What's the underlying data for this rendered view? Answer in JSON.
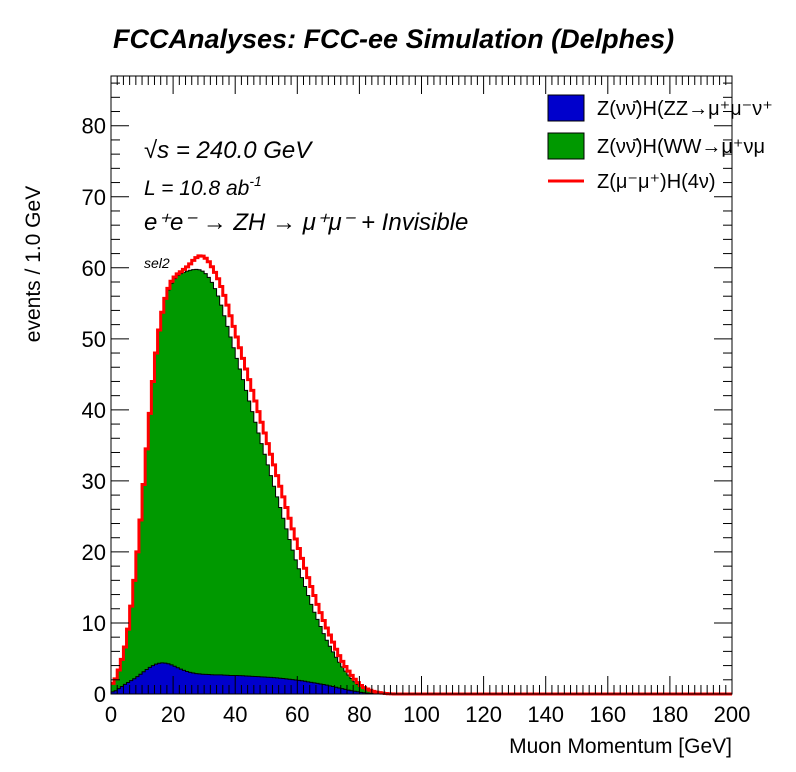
{
  "page_title": "FCCAnalyses: FCC-ee Simulation (Delphes)",
  "annotations": {
    "energy_sqrt": "√s",
    "energy_value": " = 240.0 GeV",
    "lumi": "L = 10.8 ab",
    "lumi_exp": "-1",
    "process": "e⁺e⁻ → ZH → μ⁺μ⁻ + Invisible",
    "selection": "sel2"
  },
  "chart_data": {
    "type": "histogram",
    "title": "FCCAnalyses: FCC-ee Simulation (Delphes)",
    "xlabel": "Muon Momentum [GeV]",
    "ylabel": "events / 1.0 GeV",
    "xlim": [
      0,
      200
    ],
    "ylim": [
      0,
      87
    ],
    "xticks": [
      0,
      20,
      40,
      60,
      80,
      100,
      120,
      140,
      160,
      180,
      200
    ],
    "yticks": [
      0,
      10,
      20,
      30,
      40,
      50,
      60,
      70,
      80
    ],
    "bin_width": 1.0,
    "legend_position": "top-right",
    "stacked": true,
    "series": [
      {
        "name": "Z(νν̄)H(ZZ→μ⁺μ⁻ν⁺ν⁻)",
        "legend_label": "Z(νν̄)H(ZZ→μ⁺μ⁻ν⁺",
        "style": "filled",
        "color": "#0000cc",
        "points": [
          [
            1,
            0.3
          ],
          [
            3,
            0.9
          ],
          [
            5,
            1.5
          ],
          [
            7,
            2.0
          ],
          [
            9,
            2.6
          ],
          [
            11,
            3.3
          ],
          [
            13,
            3.9
          ],
          [
            15,
            4.3
          ],
          [
            17,
            4.4
          ],
          [
            19,
            4.2
          ],
          [
            21,
            3.8
          ],
          [
            23,
            3.4
          ],
          [
            25,
            3.1
          ],
          [
            27,
            2.9
          ],
          [
            29,
            2.8
          ],
          [
            31,
            2.75
          ],
          [
            33,
            2.7
          ],
          [
            35,
            2.7
          ],
          [
            37,
            2.65
          ],
          [
            39,
            2.6
          ],
          [
            41,
            2.6
          ],
          [
            43,
            2.55
          ],
          [
            45,
            2.5
          ],
          [
            47,
            2.45
          ],
          [
            49,
            2.4
          ],
          [
            51,
            2.35
          ],
          [
            53,
            2.3
          ],
          [
            55,
            2.2
          ],
          [
            57,
            2.1
          ],
          [
            59,
            2.0
          ],
          [
            61,
            1.9
          ],
          [
            63,
            1.75
          ],
          [
            65,
            1.6
          ],
          [
            67,
            1.45
          ],
          [
            69,
            1.3
          ],
          [
            71,
            1.1
          ],
          [
            73,
            0.9
          ],
          [
            75,
            0.7
          ],
          [
            77,
            0.5
          ],
          [
            79,
            0.35
          ],
          [
            81,
            0.2
          ],
          [
            83,
            0.1
          ],
          [
            85,
            0.05
          ],
          [
            87,
            0.02
          ],
          [
            89,
            0.0
          ]
        ]
      },
      {
        "name": "Z(νν̄)H(WW→μ⁺νμ⁻ν̄)",
        "legend_label": "Z(νν̄)H(WW→μ⁺νμ",
        "style": "filled",
        "color": "#009900",
        "points": [
          [
            1,
            1.5
          ],
          [
            3,
            4.0
          ],
          [
            5,
            7.5
          ],
          [
            7,
            14.0
          ],
          [
            9,
            22.0
          ],
          [
            11,
            32.0
          ],
          [
            13,
            42.0
          ],
          [
            15,
            50.0
          ],
          [
            17,
            55.0
          ],
          [
            19,
            57.5
          ],
          [
            21,
            58.8
          ],
          [
            23,
            59.3
          ],
          [
            25,
            59.6
          ],
          [
            27,
            59.8
          ],
          [
            29,
            59.7
          ],
          [
            31,
            59.0
          ],
          [
            33,
            57.6
          ],
          [
            35,
            55.5
          ],
          [
            37,
            52.5
          ],
          [
            39,
            49.5
          ],
          [
            41,
            46.5
          ],
          [
            43,
            43.5
          ],
          [
            45,
            40.5
          ],
          [
            47,
            37.5
          ],
          [
            49,
            34.5
          ],
          [
            51,
            31.5
          ],
          [
            53,
            28.5
          ],
          [
            55,
            25.5
          ],
          [
            57,
            22.5
          ],
          [
            59,
            19.5
          ],
          [
            61,
            17.0
          ],
          [
            63,
            14.5
          ],
          [
            65,
            12.0
          ],
          [
            67,
            10.0
          ],
          [
            69,
            8.0
          ],
          [
            71,
            6.3
          ],
          [
            73,
            4.8
          ],
          [
            75,
            3.5
          ],
          [
            77,
            2.4
          ],
          [
            79,
            1.5
          ],
          [
            81,
            0.9
          ],
          [
            83,
            0.5
          ],
          [
            85,
            0.3
          ],
          [
            87,
            0.15
          ],
          [
            89,
            0.05
          ],
          [
            91,
            0.0
          ]
        ]
      },
      {
        "name": "Z(μ⁻μ⁺)H(4ν)",
        "legend_label": "Z(μ⁻μ⁺)H(4ν)",
        "style": "line",
        "color": "#ff0000",
        "points": [
          [
            1,
            1.5
          ],
          [
            3,
            4.0
          ],
          [
            5,
            7.5
          ],
          [
            7,
            14.0
          ],
          [
            9,
            22.0
          ],
          [
            11,
            32.0
          ],
          [
            13,
            42.0
          ],
          [
            15,
            50.0
          ],
          [
            17,
            55.0
          ],
          [
            19,
            57.8
          ],
          [
            21,
            59.0
          ],
          [
            23,
            59.6
          ],
          [
            25,
            60.3
          ],
          [
            27,
            61.3
          ],
          [
            29,
            61.8
          ],
          [
            31,
            61.2
          ],
          [
            33,
            59.8
          ],
          [
            35,
            58.0
          ],
          [
            37,
            55.5
          ],
          [
            39,
            52.5
          ],
          [
            41,
            49.5
          ],
          [
            43,
            46.5
          ],
          [
            45,
            43.5
          ],
          [
            47,
            40.5
          ],
          [
            49,
            37.5
          ],
          [
            51,
            34.5
          ],
          [
            53,
            31.5
          ],
          [
            55,
            28.5
          ],
          [
            57,
            25.5
          ],
          [
            59,
            22.5
          ],
          [
            61,
            19.8
          ],
          [
            63,
            17.0
          ],
          [
            65,
            14.5
          ],
          [
            67,
            12.0
          ],
          [
            69,
            9.8
          ],
          [
            71,
            7.8
          ],
          [
            73,
            5.8
          ],
          [
            75,
            4.2
          ],
          [
            77,
            2.9
          ],
          [
            79,
            1.8
          ],
          [
            81,
            1.0
          ],
          [
            83,
            0.6
          ],
          [
            85,
            0.3
          ],
          [
            87,
            0.15
          ],
          [
            89,
            0.05
          ],
          [
            91,
            0.0
          ],
          [
            200,
            0.0
          ]
        ]
      }
    ]
  }
}
